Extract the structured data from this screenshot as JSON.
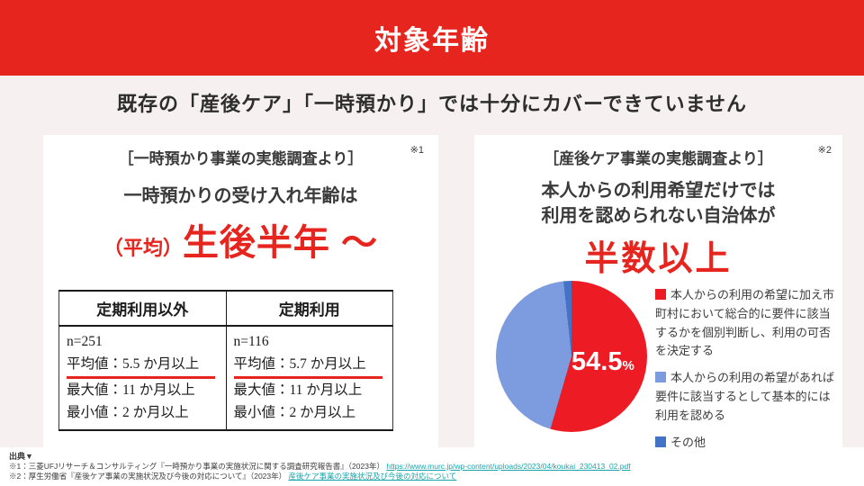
{
  "header": {
    "title": "対象年齢"
  },
  "subtitle": "既存の「産後ケア」「一時預かり」では十分にカバーできていません",
  "left_panel": {
    "source_label": "［一時預かり事業の実態調査より］",
    "footnote_mark": "※1",
    "statement": "一時預かりの受け入れ年齢は",
    "highlight_prefix": "（平均）",
    "highlight_main": "生後半年 ～",
    "table": {
      "columns": [
        "定期利用以外",
        "定期利用"
      ],
      "col1": {
        "n": "n=251",
        "mean": "平均値：5.5 か月以上",
        "max": "最大値：11 か月以上",
        "min": "最小値：2 か月以上"
      },
      "col2": {
        "n": "n=116",
        "mean": "平均値：5.7 か月以上",
        "max": "最大値：11 か月以上",
        "min": "最小値：2 か月以上"
      }
    }
  },
  "right_panel": {
    "source_label": "［産後ケア事業の実態調査より］",
    "footnote_mark": "※2",
    "statement_line1": "本人からの利用希望だけでは",
    "statement_line2": "利用を認められない自治体が",
    "highlight": "半数以上",
    "pie_label_value": "54.5",
    "pie_label_unit": "%",
    "legend": [
      {
        "text": "本人からの利用の希望に加え市町村において総合的に要件に該当するかを個別判断し、利用の可否を決定する",
        "color": "#ed1c24"
      },
      {
        "text": "本人からの利用の希望があれば要件に該当するとして基本的には利用を認める",
        "color": "#7d9ce0"
      },
      {
        "text": "その他",
        "color": "#4472c4"
      }
    ]
  },
  "chart_data": [
    {
      "type": "pie",
      "title": "本人からの利用希望だけでは利用を認められない自治体の割合（産後ケア事業の実態調査より）",
      "labels": [
        "本人からの利用の希望に加え市町村において総合的に要件に該当するかを個別判断し、利用の可否を決定する",
        "本人からの利用の希望があれば要件に該当するとして基本的には利用を認める",
        "その他"
      ],
      "values": [
        54.5,
        43.8,
        1.7
      ],
      "colors": [
        "#ed1c24",
        "#7d9ce0",
        "#4472c4"
      ],
      "data_label": "54.5%",
      "legend_position": "right",
      "start_angle_deg": 0,
      "direction": "clockwise"
    },
    {
      "type": "table",
      "title": "一時預かりの受け入れ年齢（一時預かり事業の実態調査より）",
      "columns": [
        "定期利用以外",
        "定期利用"
      ],
      "rows": [
        [
          "n=251",
          "平均値：5.5 か月以上",
          "最大値：11 か月以上",
          "最小値：2 か月以上"
        ],
        [
          "n=116",
          "平均値：5.7 か月以上",
          "最大値：11 か月以上",
          "最小値：2 か月以上"
        ]
      ]
    }
  ],
  "footer": {
    "heading": "出典▼",
    "line1_text": "※1：三菱UFJリサーチ＆コンサルティング『一時預かり事業の実施状況に関する調査研究報告書』（2023年）",
    "line1_link": "https://www.murc.jp/wp-content/uploads/2023/04/koukai_230413_02.pdf",
    "line2_text": "※2：厚生労働省『産後ケア事業の実施状況及び今後の対応について』（2023年）",
    "line2_link": "産後ケア事業の実施状況及び今後の対応について"
  },
  "colors": {
    "accent_red": "#e7251f",
    "pie_red": "#ed1c24",
    "pie_light_blue": "#7d9ce0",
    "pie_dark_blue": "#4472c4",
    "page_background": "#f6f1f0",
    "panel_background": "#ffffff",
    "text_dark": "#3a3a3a",
    "link_teal": "#18a5ac"
  }
}
